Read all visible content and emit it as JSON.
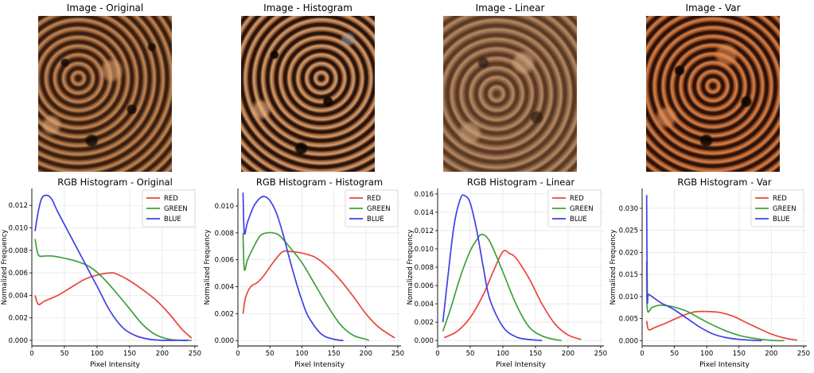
{
  "images": [
    {
      "title": "Image - Original"
    },
    {
      "title": "Image - Histogram"
    },
    {
      "title": "Image - Linear"
    },
    {
      "title": "Image - Var"
    }
  ],
  "colors": {
    "red": "#e8453c",
    "green": "#3ea03e",
    "blue": "#3f3fe8"
  },
  "chart_data": [
    {
      "type": "line",
      "title": "RGB Histogram - Original",
      "xlabel": "Pixel Intensity",
      "ylabel": "Normalized Frequency",
      "xlim": [
        0,
        255
      ],
      "ylim": [
        -0.0005,
        0.0135
      ],
      "xticks": [
        0,
        50,
        100,
        150,
        200,
        250
      ],
      "yticks": [
        0.0,
        0.002,
        0.004,
        0.006,
        0.008,
        0.01,
        0.012
      ],
      "grid": true,
      "legend": "top-right",
      "series": [
        {
          "name": "RED",
          "x": [
            5,
            10,
            20,
            40,
            60,
            80,
            100,
            120,
            130,
            150,
            170,
            190,
            210,
            230,
            245
          ],
          "y": [
            0.004,
            0.0032,
            0.0035,
            0.004,
            0.0047,
            0.0054,
            0.0058,
            0.006,
            0.0059,
            0.0053,
            0.0045,
            0.0036,
            0.0024,
            0.001,
            0.0002
          ]
        },
        {
          "name": "GREEN",
          "x": [
            5,
            10,
            20,
            30,
            50,
            70,
            90,
            110,
            130,
            150,
            170,
            190,
            210,
            230,
            245
          ],
          "y": [
            0.009,
            0.0076,
            0.0075,
            0.0075,
            0.0073,
            0.007,
            0.0065,
            0.0055,
            0.0042,
            0.0028,
            0.0014,
            0.0005,
            0.0001,
            0.0,
            0.0
          ]
        },
        {
          "name": "BLUE",
          "x": [
            5,
            10,
            15,
            22,
            30,
            40,
            60,
            80,
            100,
            120,
            140,
            160,
            180,
            200,
            220,
            240
          ],
          "y": [
            0.0097,
            0.0115,
            0.0126,
            0.0129,
            0.0126,
            0.0114,
            0.0092,
            0.007,
            0.0048,
            0.0026,
            0.0011,
            0.0004,
            0.0001,
            0.0,
            0.0,
            0.0
          ]
        }
      ]
    },
    {
      "type": "line",
      "title": "RGB Histogram - Histogram",
      "xlabel": "Pixel Intensity",
      "ylabel": "Normalized Frequency",
      "xlim": [
        0,
        255
      ],
      "ylim": [
        -0.0004,
        0.0113
      ],
      "xticks": [
        0,
        50,
        100,
        150,
        200,
        250
      ],
      "yticks": [
        0.0,
        0.002,
        0.004,
        0.006,
        0.008,
        0.01
      ],
      "grid": true,
      "legend": "top-right",
      "series": [
        {
          "name": "RED",
          "x": [
            8,
            12,
            20,
            30,
            40,
            55,
            70,
            85,
            100,
            120,
            140,
            160,
            180,
            200,
            220,
            245
          ],
          "y": [
            0.002,
            0.0032,
            0.004,
            0.0043,
            0.0048,
            0.0058,
            0.0066,
            0.0066,
            0.0065,
            0.0062,
            0.0055,
            0.0045,
            0.0033,
            0.002,
            0.001,
            0.0002
          ]
        },
        {
          "name": "GREEN",
          "x": [
            8,
            10,
            15,
            25,
            35,
            45,
            55,
            65,
            80,
            100,
            120,
            140,
            160,
            180,
            200,
            205
          ],
          "y": [
            0.008,
            0.0053,
            0.006,
            0.007,
            0.0078,
            0.008,
            0.008,
            0.0078,
            0.007,
            0.0058,
            0.0042,
            0.0026,
            0.0012,
            0.0004,
            0.0001,
            0.0
          ]
        },
        {
          "name": "BLUE",
          "x": [
            8,
            10,
            15,
            25,
            35,
            42,
            50,
            60,
            70,
            80,
            90,
            100,
            110,
            130,
            150,
            165
          ],
          "y": [
            0.011,
            0.008,
            0.0088,
            0.01,
            0.0106,
            0.0107,
            0.0104,
            0.0095,
            0.008,
            0.0062,
            0.0045,
            0.003,
            0.0018,
            0.0005,
            0.0001,
            0.0
          ]
        }
      ]
    },
    {
      "type": "line",
      "title": "RGB Histogram - Linear",
      "xlabel": "Pixel Intensity",
      "ylabel": "Normalized Frequency",
      "xlim": [
        0,
        255
      ],
      "ylim": [
        -0.0006,
        0.0166
      ],
      "xticks": [
        0,
        50,
        100,
        150,
        200,
        250
      ],
      "yticks": [
        0.0,
        0.002,
        0.004,
        0.006,
        0.008,
        0.01,
        0.012,
        0.014,
        0.016
      ],
      "grid": true,
      "legend": "top-right",
      "series": [
        {
          "name": "RED",
          "x": [
            10,
            30,
            50,
            70,
            85,
            100,
            110,
            120,
            140,
            160,
            180,
            200,
            220
          ],
          "y": [
            0.0003,
            0.001,
            0.0025,
            0.005,
            0.0075,
            0.0097,
            0.0095,
            0.009,
            0.0068,
            0.004,
            0.0018,
            0.0006,
            0.0001
          ]
        },
        {
          "name": "GREEN",
          "x": [
            8,
            20,
            35,
            50,
            60,
            68,
            80,
            100,
            120,
            140,
            160,
            180,
            190
          ],
          "y": [
            0.001,
            0.0035,
            0.007,
            0.0098,
            0.011,
            0.0116,
            0.0108,
            0.0075,
            0.004,
            0.0015,
            0.0005,
            0.0001,
            0.0
          ]
        },
        {
          "name": "BLUE",
          "x": [
            8,
            15,
            25,
            35,
            42,
            50,
            60,
            70,
            80,
            100,
            120,
            140,
            160
          ],
          "y": [
            0.002,
            0.0065,
            0.0125,
            0.0155,
            0.0158,
            0.015,
            0.012,
            0.008,
            0.0045,
            0.0015,
            0.0004,
            0.0001,
            0.0
          ]
        }
      ]
    },
    {
      "type": "line",
      "title": "RGB Histogram - Var",
      "xlabel": "Pixel Intensity",
      "ylabel": "Normalized Frequency",
      "xlim": [
        0,
        255
      ],
      "ylim": [
        -0.0012,
        0.0345
      ],
      "xticks": [
        0,
        50,
        100,
        150,
        200,
        250
      ],
      "yticks": [
        0.0,
        0.005,
        0.01,
        0.015,
        0.02,
        0.025,
        0.03
      ],
      "grid": true,
      "legend": "top-right",
      "series": [
        {
          "name": "RED",
          "x": [
            7,
            10,
            20,
            40,
            60,
            80,
            100,
            120,
            140,
            160,
            180,
            200,
            220,
            240
          ],
          "y": [
            0.0045,
            0.0025,
            0.003,
            0.0042,
            0.0055,
            0.0065,
            0.0066,
            0.0064,
            0.0056,
            0.0042,
            0.0028,
            0.0015,
            0.0006,
            0.0001
          ]
        },
        {
          "name": "GREEN",
          "x": [
            7,
            8,
            15,
            25,
            35,
            50,
            70,
            90,
            110,
            130,
            150,
            170,
            190,
            210,
            220
          ],
          "y": [
            0.018,
            0.0072,
            0.0075,
            0.008,
            0.008,
            0.0076,
            0.0066,
            0.005,
            0.0035,
            0.0022,
            0.0012,
            0.0006,
            0.0002,
            0.0,
            0.0
          ]
        },
        {
          "name": "BLUE",
          "x": [
            7,
            8,
            10,
            20,
            30,
            40,
            50,
            70,
            90,
            110,
            130,
            150,
            170,
            185
          ],
          "y": [
            0.033,
            0.01,
            0.0105,
            0.0095,
            0.0085,
            0.0078,
            0.007,
            0.005,
            0.003,
            0.0015,
            0.0007,
            0.0003,
            0.0001,
            0.0
          ]
        }
      ]
    }
  ]
}
